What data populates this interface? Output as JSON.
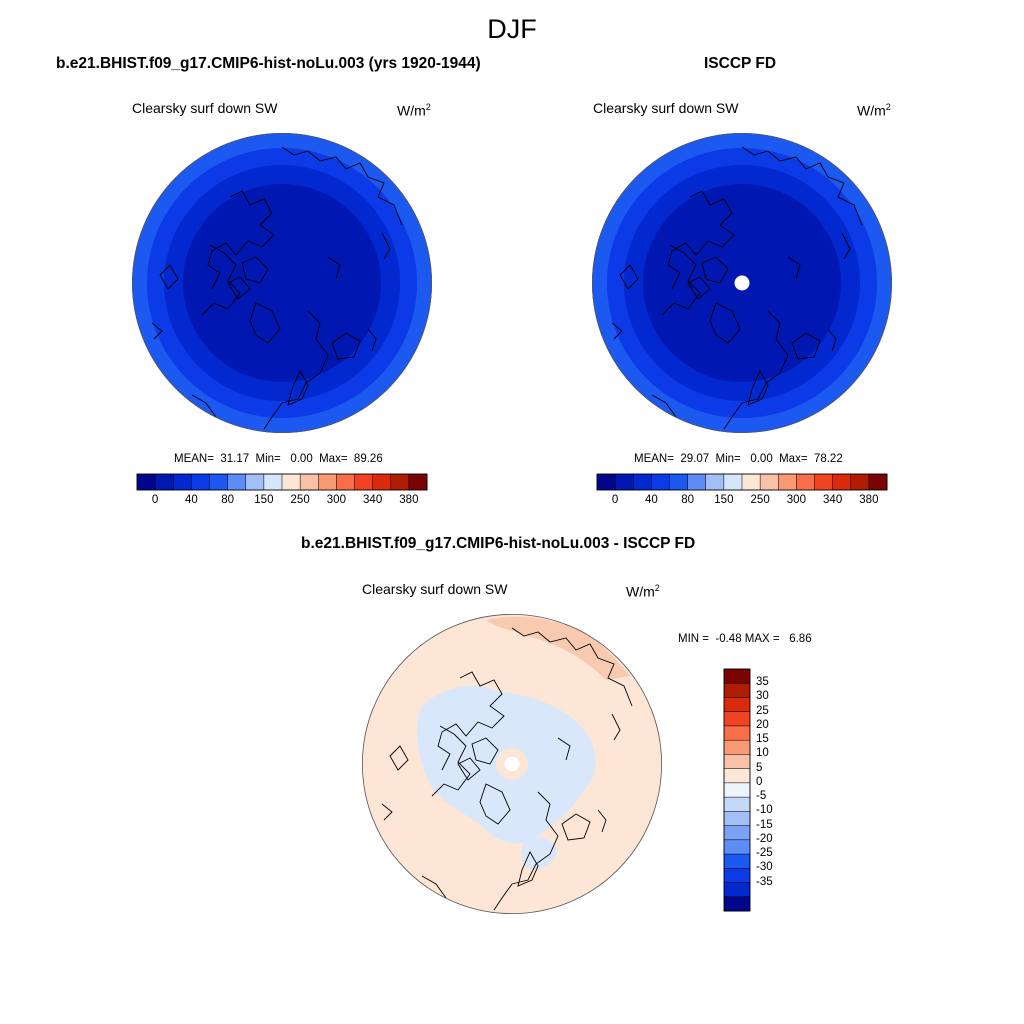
{
  "season": "DJF",
  "panels": [
    {
      "title": "b.e21.BHIST.f09_g17.CMIP6-hist-noLu.003 (yrs 1920-1944)",
      "variable": "Clearsky surf down SW",
      "units_base": "W/m",
      "units_exp": "2",
      "stats": "MEAN=  31.17  Min=   0.00  Max=  89.26",
      "ring_colors": [
        "#1b59f1",
        "#0c3ae6",
        "#0228cf",
        "#0018b1"
      ],
      "polar_gap": false
    },
    {
      "title": "ISCCP FD",
      "variable": "Clearsky surf down SW",
      "units_base": "W/m",
      "units_exp": "2",
      "stats": "MEAN=  29.07  Min=   0.00  Max=  78.22",
      "ring_colors": [
        "#1b59f1",
        "#0c3ae6",
        "#0228cf",
        "#0018b1"
      ],
      "polar_gap": true
    }
  ],
  "abs_colorbar": {
    "colors": [
      "#00058c",
      "#0018b1",
      "#0228cf",
      "#0c3ae6",
      "#1b59f1",
      "#5d8cf4",
      "#a3bff7",
      "#d6e6fa",
      "#fce6d6",
      "#f9c2a8",
      "#f99a74",
      "#f86e48",
      "#ef4322",
      "#d92b0a",
      "#ae1d02",
      "#7a0303"
    ],
    "tick_labels": [
      "0",
      "40",
      "80",
      "150",
      "250",
      "300",
      "340",
      "380"
    ]
  },
  "diff_panel": {
    "title": "b.e21.BHIST.f09_g17.CMIP6-hist-noLu.003 - ISCCP FD",
    "variable": "Clearsky surf down SW",
    "units": "W/m",
    "units_exp": "2",
    "stats": "MIN =  -0.48 MAX =   6.86",
    "background_color": "#fde6d6",
    "negative_color": "#d9e7fa",
    "positive_color": "#f9c9b0"
  },
  "diff_colorbar": {
    "colors": [
      "#7a0303",
      "#ae1d02",
      "#d92b0a",
      "#ef4322",
      "#f86e48",
      "#f99a74",
      "#f9c2a8",
      "#fce6d6",
      "#eef4fc",
      "#c6d8f8",
      "#a3bff7",
      "#7ba1f5",
      "#5d8cf4",
      "#1b59f1",
      "#0c3ae6",
      "#0228cf",
      "#00058c"
    ],
    "tick_labels": [
      "35",
      "30",
      "25",
      "20",
      "15",
      "10",
      "5",
      "0",
      "-5",
      "-10",
      "-15",
      "-20",
      "-25",
      "-30",
      "-35"
    ]
  }
}
